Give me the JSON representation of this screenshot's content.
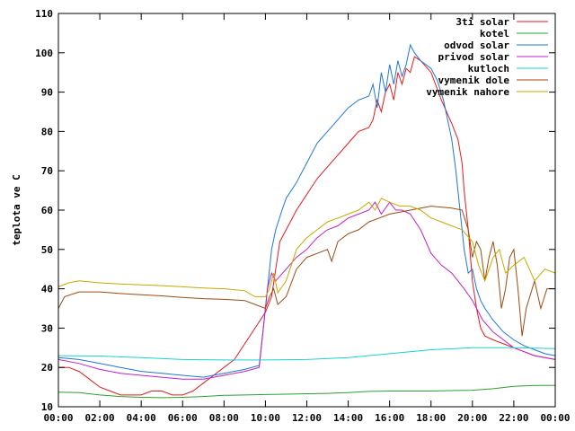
{
  "chart_data": {
    "type": "line",
    "title": "",
    "xlabel": "",
    "ylabel": "teplota ve C",
    "xlim": [
      0,
      24
    ],
    "ylim": [
      10,
      110
    ],
    "grid": false,
    "legend_position": "top-right",
    "x_ticks": [
      "00:00",
      "02:00",
      "04:00",
      "06:00",
      "08:00",
      "10:00",
      "12:00",
      "14:00",
      "16:00",
      "18:00",
      "20:00",
      "22:00",
      "00:00"
    ],
    "y_ticks": [
      10,
      20,
      30,
      40,
      50,
      60,
      70,
      80,
      90,
      100,
      110
    ],
    "series": [
      {
        "name": "3ti solar",
        "color": "#e41a1c",
        "points": [
          [
            0,
            20
          ],
          [
            0.5,
            20
          ],
          [
            1,
            19
          ],
          [
            1.5,
            17
          ],
          [
            2,
            15
          ],
          [
            2.5,
            14
          ],
          [
            3,
            13
          ],
          [
            3.5,
            13
          ],
          [
            4,
            13
          ],
          [
            4.5,
            14
          ],
          [
            5,
            14
          ],
          [
            5.5,
            13
          ],
          [
            6,
            13
          ],
          [
            6.5,
            14
          ],
          [
            7,
            16
          ],
          [
            7.5,
            18
          ],
          [
            8,
            20
          ],
          [
            8.5,
            22
          ],
          [
            9,
            26
          ],
          [
            9.5,
            30
          ],
          [
            10,
            34
          ],
          [
            10.3,
            38
          ],
          [
            10.5,
            45
          ],
          [
            10.7,
            52
          ],
          [
            11,
            55
          ],
          [
            11.5,
            60
          ],
          [
            12,
            64
          ],
          [
            12.5,
            68
          ],
          [
            13,
            71
          ],
          [
            13.5,
            74
          ],
          [
            14,
            77
          ],
          [
            14.5,
            80
          ],
          [
            15,
            81
          ],
          [
            15.2,
            83
          ],
          [
            15.4,
            88
          ],
          [
            15.6,
            85
          ],
          [
            15.8,
            90
          ],
          [
            16,
            92
          ],
          [
            16.2,
            88
          ],
          [
            16.4,
            95
          ],
          [
            16.6,
            92
          ],
          [
            16.8,
            96
          ],
          [
            17,
            95
          ],
          [
            17.2,
            99
          ],
          [
            17.5,
            98
          ],
          [
            18,
            95
          ],
          [
            18.5,
            88
          ],
          [
            19,
            82
          ],
          [
            19.3,
            78
          ],
          [
            19.5,
            72
          ],
          [
            19.6,
            65
          ],
          [
            19.8,
            55
          ],
          [
            20,
            42
          ],
          [
            20.2,
            35
          ],
          [
            20.4,
            30
          ],
          [
            20.6,
            28
          ],
          [
            21,
            27
          ],
          [
            21.5,
            26
          ],
          [
            22,
            25
          ],
          [
            22.5,
            24
          ],
          [
            23,
            23
          ],
          [
            23.5,
            22.5
          ],
          [
            24,
            22
          ]
        ]
      },
      {
        "name": "kotel",
        "color": "#2ca02c",
        "points": [
          [
            0,
            13.7
          ],
          [
            1,
            13.6
          ],
          [
            2,
            13
          ],
          [
            3,
            12.6
          ],
          [
            4,
            12.4
          ],
          [
            5,
            12.3
          ],
          [
            6,
            12.4
          ],
          [
            7,
            12.6
          ],
          [
            8,
            12.9
          ],
          [
            9,
            13
          ],
          [
            10,
            13.1
          ],
          [
            11,
            13.2
          ],
          [
            12,
            13.3
          ],
          [
            13,
            13.4
          ],
          [
            14,
            13.6
          ],
          [
            15,
            13.9
          ],
          [
            16,
            14
          ],
          [
            17,
            14
          ],
          [
            18,
            14
          ],
          [
            19,
            14.1
          ],
          [
            20,
            14.2
          ],
          [
            21,
            14.6
          ],
          [
            22,
            15.2
          ],
          [
            23,
            15.4
          ],
          [
            24,
            15.4
          ]
        ]
      },
      {
        "name": "odvod solar",
        "color": "#1f77d4",
        "points": [
          [
            0,
            22.5
          ],
          [
            1,
            22
          ],
          [
            2,
            21
          ],
          [
            3,
            20
          ],
          [
            4,
            19
          ],
          [
            5,
            18.5
          ],
          [
            6,
            18
          ],
          [
            7,
            17.5
          ],
          [
            8,
            18.5
          ],
          [
            9,
            19.5
          ],
          [
            9.7,
            20.5
          ],
          [
            9.9,
            30
          ],
          [
            10.1,
            40
          ],
          [
            10.3,
            50
          ],
          [
            10.5,
            55
          ],
          [
            10.8,
            60
          ],
          [
            11,
            63
          ],
          [
            11.5,
            67
          ],
          [
            12,
            72
          ],
          [
            12.5,
            77
          ],
          [
            13,
            80
          ],
          [
            13.5,
            83
          ],
          [
            14,
            86
          ],
          [
            14.5,
            88
          ],
          [
            15,
            89
          ],
          [
            15.2,
            92
          ],
          [
            15.4,
            86
          ],
          [
            15.6,
            95
          ],
          [
            15.8,
            90
          ],
          [
            16,
            97
          ],
          [
            16.2,
            92
          ],
          [
            16.4,
            98
          ],
          [
            16.6,
            94
          ],
          [
            16.8,
            97
          ],
          [
            17,
            102
          ],
          [
            17.2,
            100
          ],
          [
            17.5,
            98
          ],
          [
            18,
            96
          ],
          [
            18.3,
            93
          ],
          [
            18.6,
            88
          ],
          [
            19,
            78
          ],
          [
            19.2,
            70
          ],
          [
            19.4,
            60
          ],
          [
            19.6,
            50
          ],
          [
            19.8,
            44
          ],
          [
            20,
            45
          ],
          [
            20.2,
            40
          ],
          [
            20.4,
            37
          ],
          [
            20.6,
            35
          ],
          [
            21,
            32
          ],
          [
            21.5,
            29
          ],
          [
            22,
            27
          ],
          [
            22.5,
            25.5
          ],
          [
            23,
            24.5
          ],
          [
            23.5,
            23.5
          ],
          [
            24,
            23
          ]
        ]
      },
      {
        "name": "privod solar",
        "color": "#c21fc7",
        "points": [
          [
            0,
            22
          ],
          [
            1,
            21
          ],
          [
            2,
            19.5
          ],
          [
            3,
            18.5
          ],
          [
            4,
            18
          ],
          [
            5,
            17.5
          ],
          [
            6,
            17
          ],
          [
            7,
            17
          ],
          [
            8,
            18
          ],
          [
            9,
            19
          ],
          [
            9.7,
            20
          ],
          [
            9.9,
            30
          ],
          [
            10.1,
            40
          ],
          [
            10.3,
            44
          ],
          [
            10.5,
            42
          ],
          [
            11,
            45
          ],
          [
            11.5,
            48
          ],
          [
            12,
            50
          ],
          [
            12.5,
            53
          ],
          [
            13,
            55
          ],
          [
            13.5,
            56
          ],
          [
            14,
            58
          ],
          [
            14.5,
            59
          ],
          [
            15,
            60
          ],
          [
            15.3,
            62
          ],
          [
            15.6,
            59
          ],
          [
            16,
            62
          ],
          [
            16.3,
            60
          ],
          [
            16.6,
            60
          ],
          [
            17,
            59
          ],
          [
            17.5,
            55
          ],
          [
            18,
            49
          ],
          [
            18.5,
            46
          ],
          [
            19,
            44
          ],
          [
            19.3,
            42
          ],
          [
            19.6,
            40
          ],
          [
            20,
            37
          ],
          [
            20.5,
            32
          ],
          [
            21,
            29
          ],
          [
            21.5,
            27
          ],
          [
            22,
            25
          ],
          [
            22.5,
            24
          ],
          [
            23,
            23
          ],
          [
            24,
            22
          ]
        ]
      },
      {
        "name": "kutloch",
        "color": "#17d3d3",
        "points": [
          [
            0,
            23
          ],
          [
            2,
            22.9
          ],
          [
            4,
            22.5
          ],
          [
            6,
            22
          ],
          [
            8,
            21.9
          ],
          [
            10,
            21.9
          ],
          [
            12,
            22
          ],
          [
            14,
            22.5
          ],
          [
            16,
            23.5
          ],
          [
            18,
            24.5
          ],
          [
            20,
            25
          ],
          [
            22,
            25
          ],
          [
            24,
            24.8
          ]
        ]
      },
      {
        "name": "vymenik dole",
        "color": "#9c4a10",
        "points": [
          [
            0,
            35
          ],
          [
            0.3,
            38
          ],
          [
            1,
            39.2
          ],
          [
            2,
            39.2
          ],
          [
            3,
            38.8
          ],
          [
            4,
            38.5
          ],
          [
            5,
            38.2
          ],
          [
            6,
            37.8
          ],
          [
            7,
            37.5
          ],
          [
            8,
            37.3
          ],
          [
            9,
            37
          ],
          [
            9.5,
            36
          ],
          [
            10,
            35
          ],
          [
            10.2,
            38
          ],
          [
            10.4,
            40
          ],
          [
            10.6,
            36
          ],
          [
            11,
            38
          ],
          [
            11.5,
            45
          ],
          [
            12,
            48
          ],
          [
            12.5,
            49
          ],
          [
            13,
            50
          ],
          [
            13.2,
            47
          ],
          [
            13.5,
            52
          ],
          [
            14,
            54
          ],
          [
            14.5,
            55
          ],
          [
            15,
            57
          ],
          [
            15.5,
            58
          ],
          [
            16,
            59
          ],
          [
            16.5,
            59.5
          ],
          [
            17,
            60
          ],
          [
            18,
            61
          ],
          [
            19,
            60.5
          ],
          [
            19.5,
            60
          ],
          [
            19.8,
            55
          ],
          [
            20,
            48
          ],
          [
            20.2,
            52
          ],
          [
            20.4,
            50
          ],
          [
            20.6,
            42
          ],
          [
            20.8,
            48
          ],
          [
            21,
            52
          ],
          [
            21.2,
            46
          ],
          [
            21.4,
            35
          ],
          [
            21.6,
            40
          ],
          [
            21.8,
            48
          ],
          [
            22,
            50
          ],
          [
            22.2,
            40
          ],
          [
            22.4,
            28
          ],
          [
            22.6,
            35
          ],
          [
            23,
            42
          ],
          [
            23.3,
            35
          ],
          [
            23.6,
            40
          ],
          [
            24,
            40
          ]
        ]
      },
      {
        "name": "vymenik nahore",
        "color": "#c8aa00",
        "points": [
          [
            0,
            40.5
          ],
          [
            0.5,
            41.5
          ],
          [
            1,
            42
          ],
          [
            2,
            41.5
          ],
          [
            3,
            41.2
          ],
          [
            4,
            41
          ],
          [
            5,
            40.8
          ],
          [
            6,
            40.5
          ],
          [
            7,
            40.2
          ],
          [
            8,
            40
          ],
          [
            9,
            39.5
          ],
          [
            9.5,
            38
          ],
          [
            10,
            38
          ],
          [
            10.2,
            40
          ],
          [
            10.4,
            44
          ],
          [
            10.6,
            39
          ],
          [
            11,
            42
          ],
          [
            11.5,
            50
          ],
          [
            12,
            53
          ],
          [
            12.5,
            55
          ],
          [
            13,
            57
          ],
          [
            13.5,
            58
          ],
          [
            14,
            59
          ],
          [
            14.5,
            60
          ],
          [
            15,
            62
          ],
          [
            15.3,
            60
          ],
          [
            15.6,
            63
          ],
          [
            16,
            62
          ],
          [
            16.5,
            61
          ],
          [
            17,
            61
          ],
          [
            17.5,
            60
          ],
          [
            18,
            58
          ],
          [
            18.5,
            57
          ],
          [
            19,
            56
          ],
          [
            19.5,
            55
          ],
          [
            20,
            52
          ],
          [
            20.3,
            46
          ],
          [
            20.6,
            42
          ],
          [
            21,
            48
          ],
          [
            21.3,
            50
          ],
          [
            21.6,
            44
          ],
          [
            22,
            46
          ],
          [
            22.5,
            48
          ],
          [
            23,
            42
          ],
          [
            23.5,
            45
          ],
          [
            24,
            44
          ]
        ]
      }
    ]
  }
}
